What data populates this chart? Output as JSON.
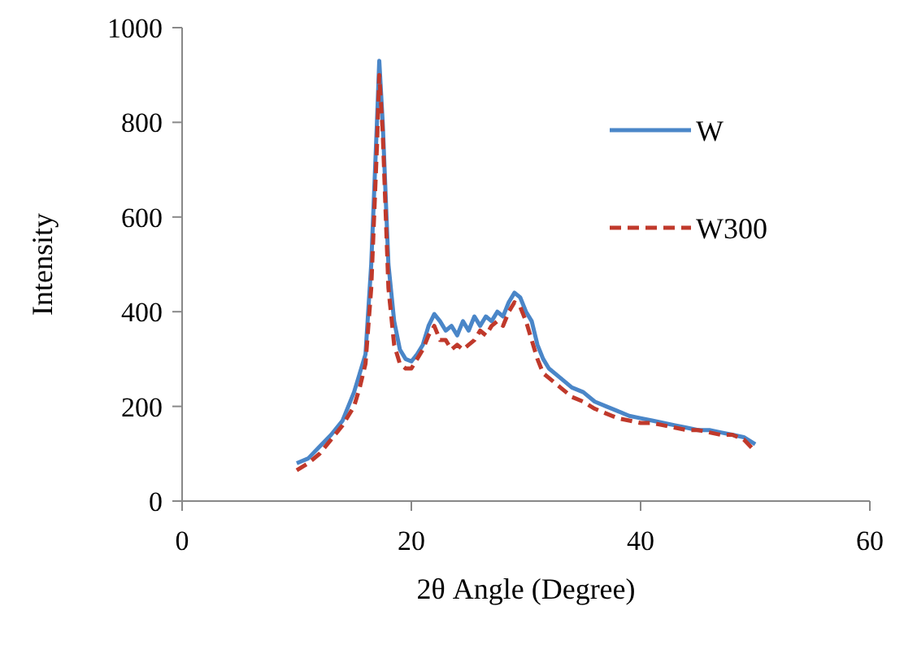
{
  "chart_data": {
    "type": "line",
    "xlabel": "2θ Angle (Degree)",
    "ylabel": "Intensity",
    "xlim": [
      0,
      60
    ],
    "xticks": [
      0,
      20,
      40,
      60
    ],
    "ylim": [
      0,
      1000
    ],
    "yticks": [
      0,
      200,
      400,
      600,
      800,
      1000
    ],
    "grid": false,
    "legend": "top right",
    "marker": "none",
    "x": [
      10,
      11,
      12,
      13,
      14,
      15,
      15.5,
      16,
      16.5,
      17,
      17.2,
      17.5,
      18,
      18.5,
      19,
      19.5,
      20,
      20.5,
      21,
      21.5,
      22,
      22.5,
      23,
      23.5,
      24,
      24.5,
      25,
      25.5,
      26,
      26.5,
      27,
      27.5,
      28,
      28.5,
      29,
      29.5,
      30,
      30.5,
      31,
      31.5,
      32,
      33,
      34,
      35,
      36,
      37,
      38,
      39,
      40,
      41,
      42,
      43,
      44,
      45,
      46,
      47,
      48,
      49,
      50
    ],
    "series": [
      {
        "name": "W",
        "color": "#4a86c8",
        "line_style": "solid",
        "values": [
          80,
          90,
          115,
          140,
          170,
          230,
          270,
          310,
          500,
          800,
          930,
          800,
          500,
          380,
          320,
          300,
          295,
          310,
          330,
          370,
          395,
          380,
          360,
          370,
          350,
          380,
          360,
          390,
          370,
          390,
          380,
          400,
          390,
          420,
          440,
          430,
          400,
          380,
          330,
          300,
          280,
          260,
          240,
          230,
          210,
          200,
          190,
          180,
          175,
          170,
          165,
          160,
          155,
          150,
          150,
          145,
          140,
          135,
          120
        ]
      },
      {
        "name": "W300",
        "color": "#c0392b",
        "line_style": "dashed",
        "values": [
          65,
          80,
          100,
          130,
          160,
          200,
          240,
          290,
          450,
          750,
          900,
          780,
          450,
          330,
          290,
          280,
          280,
          300,
          320,
          350,
          370,
          340,
          340,
          320,
          330,
          320,
          330,
          340,
          360,
          350,
          370,
          380,
          370,
          400,
          420,
          410,
          380,
          340,
          300,
          270,
          260,
          240,
          220,
          210,
          195,
          185,
          175,
          170,
          165,
          165,
          160,
          155,
          150,
          150,
          145,
          140,
          140,
          130,
          105
        ]
      }
    ]
  }
}
